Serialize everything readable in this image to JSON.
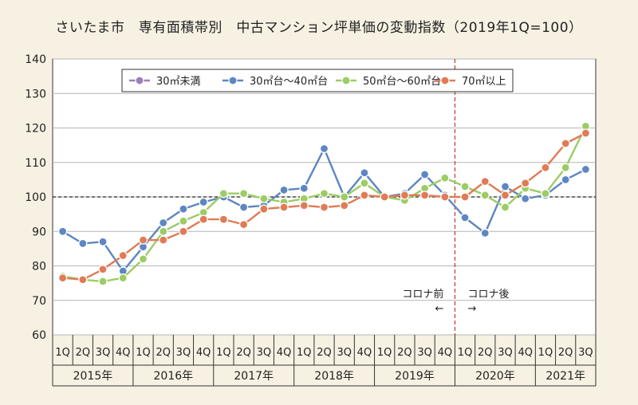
{
  "chart_data": {
    "type": "line",
    "title": "さいたま市　専有面積帯別　中古マンション坪単価の変動指数（2019年1Q=100）",
    "quarters": [
      "1Q",
      "2Q",
      "3Q",
      "4Q",
      "1Q",
      "2Q",
      "3Q",
      "4Q",
      "1Q",
      "2Q",
      "3Q",
      "4Q",
      "1Q",
      "2Q",
      "3Q",
      "4Q",
      "1Q",
      "2Q",
      "3Q",
      "4Q",
      "1Q",
      "2Q",
      "3Q",
      "4Q",
      "1Q",
      "2Q",
      "3Q"
    ],
    "years": [
      {
        "label": "2015年",
        "quarters": 4
      },
      {
        "label": "2016年",
        "quarters": 4
      },
      {
        "label": "2017年",
        "quarters": 4
      },
      {
        "label": "2018年",
        "quarters": 4
      },
      {
        "label": "2019年",
        "quarters": 4
      },
      {
        "label": "2020年",
        "quarters": 4
      },
      {
        "label": "2021年",
        "quarters": 3
      }
    ],
    "ylim": [
      60,
      140
    ],
    "yticks": [
      60,
      70,
      80,
      90,
      100,
      110,
      120,
      130,
      140
    ],
    "reference_line": 100,
    "split_after_index": 19,
    "annotations": {
      "before": "コロナ前",
      "before_arrow": "←",
      "after": "コロナ後",
      "after_arrow": "→"
    },
    "legend_position": "top",
    "series": [
      {
        "name": "30㎡未満",
        "color": "#9b7fb8",
        "values": []
      },
      {
        "name": "30㎡台～40㎡台",
        "color": "#5d86c2",
        "values": [
          90,
          86.5,
          87,
          78.5,
          85.5,
          92.5,
          96.5,
          98.5,
          100,
          97,
          97.5,
          102,
          102.5,
          114,
          100,
          107,
          100,
          101,
          106.5,
          100.5,
          94,
          89.5,
          103,
          99.5,
          100.5,
          105,
          108
        ]
      },
      {
        "name": "50㎡台～60㎡台",
        "color": "#9ccc65",
        "values": [
          77,
          76,
          75.5,
          76.5,
          82,
          90,
          93,
          95.5,
          101,
          101,
          99.5,
          98.5,
          99.5,
          101,
          100,
          104,
          100,
          99,
          102.5,
          105.5,
          103,
          100.5,
          97,
          102.5,
          101,
          108.5,
          120.5
        ]
      },
      {
        "name": "70㎡以上",
        "color": "#e07b55",
        "values": [
          76.5,
          76,
          79,
          83,
          87.5,
          87.5,
          90,
          93.5,
          93.5,
          92,
          96.5,
          97,
          97.5,
          97,
          97.5,
          100.5,
          100,
          100.5,
          100.5,
          100,
          100,
          104.5,
          100.5,
          104,
          108.5,
          115.5,
          118.5
        ]
      }
    ]
  }
}
